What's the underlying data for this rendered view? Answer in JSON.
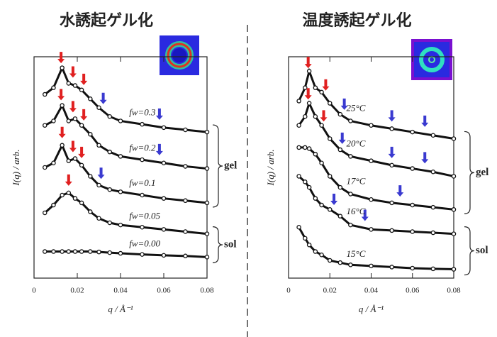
{
  "chart_data": [
    {
      "type": "line",
      "title": "水誘起ゲル化",
      "xlabel": "q / Å⁻¹",
      "ylabel": "I(q) / arb.",
      "xlim": [
        0,
        0.08
      ],
      "xticks": [
        0,
        0.02,
        0.04,
        0.06,
        0.08
      ],
      "ylim": [
        0,
        10
      ],
      "x": [
        0.005,
        0.009,
        0.013,
        0.016,
        0.019,
        0.022,
        0.026,
        0.03,
        0.035,
        0.04,
        0.05,
        0.06,
        0.07,
        0.08
      ],
      "series": [
        {
          "name": "fw=0.3",
          "color": "#111111",
          "values": [
            8.3,
            8.6,
            9.5,
            8.8,
            8.7,
            8.5,
            8.1,
            7.7,
            7.3,
            7.1,
            6.95,
            6.8,
            6.7,
            6.6
          ],
          "arrows": [
            {
              "x": 0.0125,
              "color": "#e02020"
            },
            {
              "x": 0.018,
              "color": "#e02020"
            },
            {
              "x": 0.023,
              "color": "#e02020"
            },
            {
              "x": 0.032,
              "color": "#3a3ad0"
            },
            {
              "x": 0.058,
              "color": "#3a3ad0"
            }
          ]
        },
        {
          "name": "fw=0.2",
          "color": "#111111",
          "values": [
            6.9,
            7.1,
            7.8,
            7.1,
            7.2,
            6.9,
            6.5,
            6.0,
            5.7,
            5.5,
            5.35,
            5.2,
            5.05,
            4.95
          ],
          "arrows": [
            {
              "x": 0.0125,
              "color": "#e02020"
            },
            {
              "x": 0.018,
              "color": "#e02020"
            },
            {
              "x": 0.023,
              "color": "#e02020"
            },
            {
              "x": 0.058,
              "color": "#3a3ad0"
            }
          ]
        },
        {
          "name": "fw=0.1",
          "color": "#111111",
          "values": [
            5.0,
            5.2,
            6.0,
            5.3,
            5.4,
            5.1,
            4.6,
            4.2,
            4.0,
            3.9,
            3.75,
            3.6,
            3.5,
            3.4
          ],
          "arrows": [
            {
              "x": 0.013,
              "color": "#e02020"
            },
            {
              "x": 0.018,
              "color": "#e02020"
            },
            {
              "x": 0.022,
              "color": "#e02020"
            },
            {
              "x": 0.031,
              "color": "#3a3ad0"
            }
          ]
        },
        {
          "name": "fw=0.05",
          "color": "#111111",
          "values": [
            2.95,
            3.3,
            3.75,
            3.85,
            3.6,
            3.4,
            3.0,
            2.7,
            2.5,
            2.4,
            2.3,
            2.2,
            2.1,
            2.0
          ],
          "arrows": [
            {
              "x": 0.016,
              "color": "#e02020"
            }
          ]
        },
        {
          "name": "fw=0.00",
          "color": "#111111",
          "values": [
            1.2,
            1.2,
            1.2,
            1.2,
            1.2,
            1.2,
            1.2,
            1.18,
            1.15,
            1.12,
            1.07,
            1.03,
            1.0,
            0.95
          ],
          "arrows": []
        }
      ],
      "annotations": [
        "gel",
        "sol"
      ]
    },
    {
      "type": "line",
      "title": "温度誘起ゲル化",
      "xlabel": "q / Å⁻¹",
      "ylabel": "I(q) / arb.",
      "xlim": [
        0,
        0.08
      ],
      "xticks": [
        0,
        0.02,
        0.04,
        0.06,
        0.08
      ],
      "ylim": [
        0,
        10
      ],
      "x": [
        0.005,
        0.008,
        0.01,
        0.013,
        0.016,
        0.02,
        0.025,
        0.03,
        0.04,
        0.05,
        0.06,
        0.07,
        0.08
      ],
      "series": [
        {
          "name": "25°C",
          "color": "#111111",
          "values": [
            8.0,
            8.6,
            9.35,
            8.6,
            8.4,
            7.9,
            7.4,
            7.1,
            6.9,
            6.75,
            6.6,
            6.45,
            6.3
          ],
          "arrows": [
            {
              "x": 0.0095,
              "color": "#e02020"
            },
            {
              "x": 0.018,
              "color": "#e02020"
            },
            {
              "x": 0.027,
              "color": "#3a3ad0"
            },
            {
              "x": 0.05,
              "color": "#3a3ad0"
            },
            {
              "x": 0.066,
              "color": "#3a3ad0"
            }
          ]
        },
        {
          "name": "20°C",
          "color": "#111111",
          "values": [
            6.9,
            7.3,
            7.9,
            7.3,
            6.9,
            6.3,
            5.8,
            5.5,
            5.3,
            5.1,
            4.95,
            4.8,
            4.6
          ],
          "arrows": [
            {
              "x": 0.0095,
              "color": "#e02020"
            },
            {
              "x": 0.017,
              "color": "#e02020"
            },
            {
              "x": 0.026,
              "color": "#3a3ad0"
            },
            {
              "x": 0.05,
              "color": "#3a3ad0"
            },
            {
              "x": 0.066,
              "color": "#3a3ad0"
            }
          ]
        },
        {
          "name": "17°C",
          "color": "#111111",
          "values": [
            5.9,
            5.9,
            5.85,
            5.6,
            5.2,
            4.6,
            4.1,
            3.8,
            3.55,
            3.4,
            3.3,
            3.2,
            3.1
          ],
          "arrows": [
            {
              "x": 0.054,
              "color": "#3a3ad0"
            }
          ]
        },
        {
          "name": "16°C",
          "color": "#111111",
          "values": [
            4.6,
            4.35,
            4.1,
            3.6,
            3.3,
            3.1,
            2.8,
            2.4,
            2.2,
            2.15,
            2.1,
            2.05,
            2.0
          ],
          "arrows": [
            {
              "x": 0.022,
              "color": "#3a3ad0"
            },
            {
              "x": 0.037,
              "color": "#3a3ad0"
            }
          ]
        },
        {
          "name": "15°C",
          "color": "#111111",
          "values": [
            2.3,
            1.8,
            1.5,
            1.2,
            1.05,
            0.8,
            0.7,
            0.6,
            0.55,
            0.5,
            0.45,
            0.42,
            0.4
          ],
          "arrows": []
        }
      ],
      "annotations": [
        "gel",
        "sol"
      ]
    }
  ]
}
